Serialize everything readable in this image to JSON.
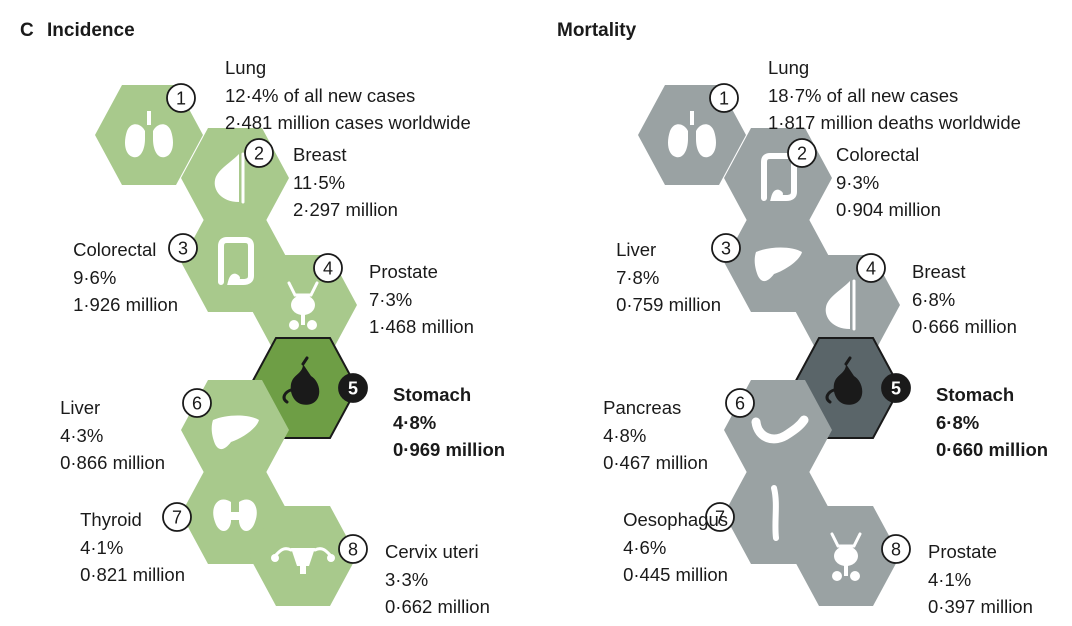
{
  "panel_letter": "C",
  "colors": {
    "incidence_hex": "#a8c98c",
    "incidence_highlight": "#6e9e45",
    "mortality_hex": "#9aa2a3",
    "mortality_highlight": "#5a6569",
    "icon": "#ffffff",
    "highlight_icon": "#1a1a1a"
  },
  "incidence": {
    "title": "Incidence",
    "items": [
      {
        "rank": "1",
        "name": "Lung",
        "line2": "12·4% of all new cases",
        "line3": "2·481 million cases worldwide",
        "icon": "lungs-icon"
      },
      {
        "rank": "2",
        "name": "Breast",
        "line2": "11·5%",
        "line3": "2·297 million",
        "icon": "breast-icon"
      },
      {
        "rank": "3",
        "name": "Colorectal",
        "line2": "9·6%",
        "line3": "1·926 million",
        "icon": "colon-icon"
      },
      {
        "rank": "4",
        "name": "Prostate",
        "line2": "7·3%",
        "line3": "1·468 million",
        "icon": "prostate-icon"
      },
      {
        "rank": "5",
        "name": "Stomach",
        "line2": "4·8%",
        "line3": "0·969 million",
        "icon": "stomach-icon"
      },
      {
        "rank": "6",
        "name": "Liver",
        "line2": "4·3%",
        "line3": "0·866 million",
        "icon": "liver-icon"
      },
      {
        "rank": "7",
        "name": "Thyroid",
        "line2": "4·1%",
        "line3": "0·821 million",
        "icon": "thyroid-icon"
      },
      {
        "rank": "8",
        "name": "Cervix uteri",
        "line2": "3·3%",
        "line3": "0·662 million",
        "icon": "uterus-icon"
      }
    ]
  },
  "mortality": {
    "title": "Mortality",
    "items": [
      {
        "rank": "1",
        "name": "Lung",
        "line2": "18·7% of all new cases",
        "line3": "1·817 million deaths worldwide",
        "icon": "lungs-icon"
      },
      {
        "rank": "2",
        "name": "Colorectal",
        "line2": "9·3%",
        "line3": "0·904 million",
        "icon": "colon-icon"
      },
      {
        "rank": "3",
        "name": "Liver",
        "line2": "7·8%",
        "line3": "0·759 million",
        "icon": "liver-icon"
      },
      {
        "rank": "4",
        "name": "Breast",
        "line2": "6·8%",
        "line3": "0·666 million",
        "icon": "breast-icon"
      },
      {
        "rank": "5",
        "name": "Stomach",
        "line2": "6·8%",
        "line3": "0·660 million",
        "icon": "stomach-icon"
      },
      {
        "rank": "6",
        "name": "Pancreas",
        "line2": "4·8%",
        "line3": "0·467 million",
        "icon": "pancreas-icon"
      },
      {
        "rank": "7",
        "name": "Oesophagus",
        "line2": "4·6%",
        "line3": "0·445 million",
        "icon": "oesophagus-icon"
      },
      {
        "rank": "8",
        "name": "Prostate",
        "line2": "4·1%",
        "line3": "0·397 million",
        "icon": "prostate-icon"
      }
    ]
  }
}
